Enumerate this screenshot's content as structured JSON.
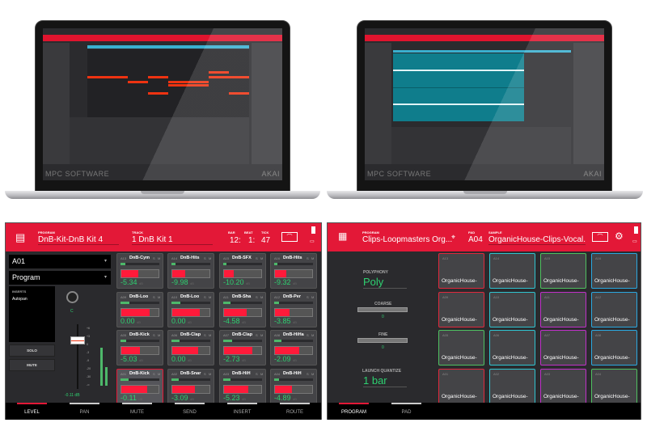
{
  "laptops": [
    {
      "logo": "MPC SOFTWARE",
      "brand": "AKAI",
      "view": "piano-roll"
    },
    {
      "logo": "MPC SOFTWARE",
      "brand": "AKAI",
      "view": "audio-waveform"
    }
  ],
  "colors": {
    "accent": "#e31837",
    "meter": "#ff1a3a",
    "value_green": "#2ed070",
    "waveform_bg": "#0f7d8c"
  },
  "mixer": {
    "header": {
      "program_label": "PROGRAM",
      "program_value": "DnB-Kit-DnB Kit 4",
      "track_label": "TRACK",
      "track_value": "1  DnB Kit 1",
      "bar_label": "BAR",
      "beat_label": "BEAT",
      "tick_label": "TICK",
      "bar": "12:",
      "beat": "1:",
      "tick": "47"
    },
    "pad_select": "A01",
    "type_select": "Program",
    "inserts_label": "INSERTS",
    "insert_item": "Autopan",
    "solo": "SOLO",
    "mute": "MUTE",
    "pan_value": "C",
    "fader_value": "-0.11 dB",
    "scale": [
      "+6",
      "+3",
      "0",
      "-3",
      "-9",
      "-20",
      "-30",
      "-∞"
    ],
    "pads": [
      {
        "id": "A13",
        "name": "DnB-Cym",
        "level": 0.45,
        "db": "-5.34"
      },
      {
        "id": "A14",
        "name": "DnB-Hits",
        "level": 0.35,
        "db": "-9.98"
      },
      {
        "id": "A15",
        "name": "DnB-SFX",
        "level": 0.25,
        "db": "-10.20"
      },
      {
        "id": "A16",
        "name": "DnB-Hits",
        "level": 0.3,
        "db": "-9.32"
      },
      {
        "id": "A09",
        "name": "DnB-Loo",
        "level": 0.75,
        "db": "0.00"
      },
      {
        "id": "A10",
        "name": "DnB-Loo",
        "level": 0.73,
        "db": "0.00"
      },
      {
        "id": "A11",
        "name": "DnB-Sha",
        "level": 0.6,
        "db": "-4.58"
      },
      {
        "id": "A12",
        "name": "DnB-Per",
        "level": 0.4,
        "db": "-3.85"
      },
      {
        "id": "A05",
        "name": "DnB-Kick",
        "level": 0.5,
        "db": "-5.03"
      },
      {
        "id": "A06",
        "name": "DnB-Clap",
        "level": 0.7,
        "db": "0.00"
      },
      {
        "id": "A07",
        "name": "DnB-Clap",
        "level": 0.75,
        "db": "-2.73"
      },
      {
        "id": "A08",
        "name": "DnB-HiHa",
        "level": 0.65,
        "db": "-2.09"
      },
      {
        "id": "A01",
        "name": "DnB-Kick",
        "level": 0.7,
        "db": "-0.11",
        "selected": true
      },
      {
        "id": "A02",
        "name": "DnB-Snar",
        "level": 0.6,
        "db": "-3.09"
      },
      {
        "id": "A03",
        "name": "DnB-HiH",
        "level": 0.65,
        "db": "-5.23"
      },
      {
        "id": "A04",
        "name": "DnB-HiH",
        "level": 0.45,
        "db": "-4.89"
      }
    ],
    "db_unit": "dB",
    "tabs": [
      "LEVEL",
      "PAN",
      "MUTE",
      "SEND",
      "INSERT",
      "ROUTE"
    ],
    "active_tab": "LEVEL"
  },
  "program_edit": {
    "header": {
      "program_label": "PROGRAM",
      "program_value": "Clips-Loopmasters Org...",
      "pad_label": "PAD",
      "pad_value": "A04",
      "sample_label": "SAMPLE",
      "sample_value": "OrganicHouse-Clips-Vocal..."
    },
    "polyphony_label": "POLYPHONY",
    "polyphony": "Poly",
    "coarse_label": "COARSE",
    "coarse": "0",
    "fine_label": "FINE",
    "fine": "0",
    "launch_label": "LAUNCH QUANTIZE",
    "launch": "1 bar",
    "pads": [
      {
        "id": "A13",
        "name": "OrganicHouse-",
        "color": "#e0283c"
      },
      {
        "id": "A14",
        "name": "OrganicHouse-",
        "color": "#2fc4d0"
      },
      {
        "id": "A15",
        "name": "OrganicHouse-",
        "color": "#4fc060"
      },
      {
        "id": "A16",
        "name": "OrganicHouse-",
        "color": "#2aa8e0"
      },
      {
        "id": "A09",
        "name": "OrganicHouse-",
        "color": "#e0283c"
      },
      {
        "id": "A10",
        "name": "OrganicHouse-",
        "color": "#2fc4d0"
      },
      {
        "id": "A11",
        "name": "OrganicHouse-",
        "color": "#c030c8"
      },
      {
        "id": "A12",
        "name": "OrganicHouse-",
        "color": "#2aa8e0"
      },
      {
        "id": "A05",
        "name": "OrganicHouse-",
        "color": "#4fc060"
      },
      {
        "id": "A06",
        "name": "OrganicHouse-",
        "color": "#2fc4d0"
      },
      {
        "id": "A07",
        "name": "OrganicHouse-",
        "color": "#c030c8"
      },
      {
        "id": "A08",
        "name": "OrganicHouse-",
        "color": "#2aa8e0"
      },
      {
        "id": "A01",
        "name": "OrganicHouse-",
        "color": "#e0283c"
      },
      {
        "id": "A02",
        "name": "OrganicHouse-",
        "color": "#2fc4d0"
      },
      {
        "id": "A03",
        "name": "OrganicHouse-",
        "color": "#c030c8"
      },
      {
        "id": "A04",
        "name": "OrganicHouse-",
        "color": "#4fc060"
      }
    ],
    "tabs": [
      "PROGRAM",
      "PAD"
    ],
    "active_tab": "PROGRAM"
  }
}
